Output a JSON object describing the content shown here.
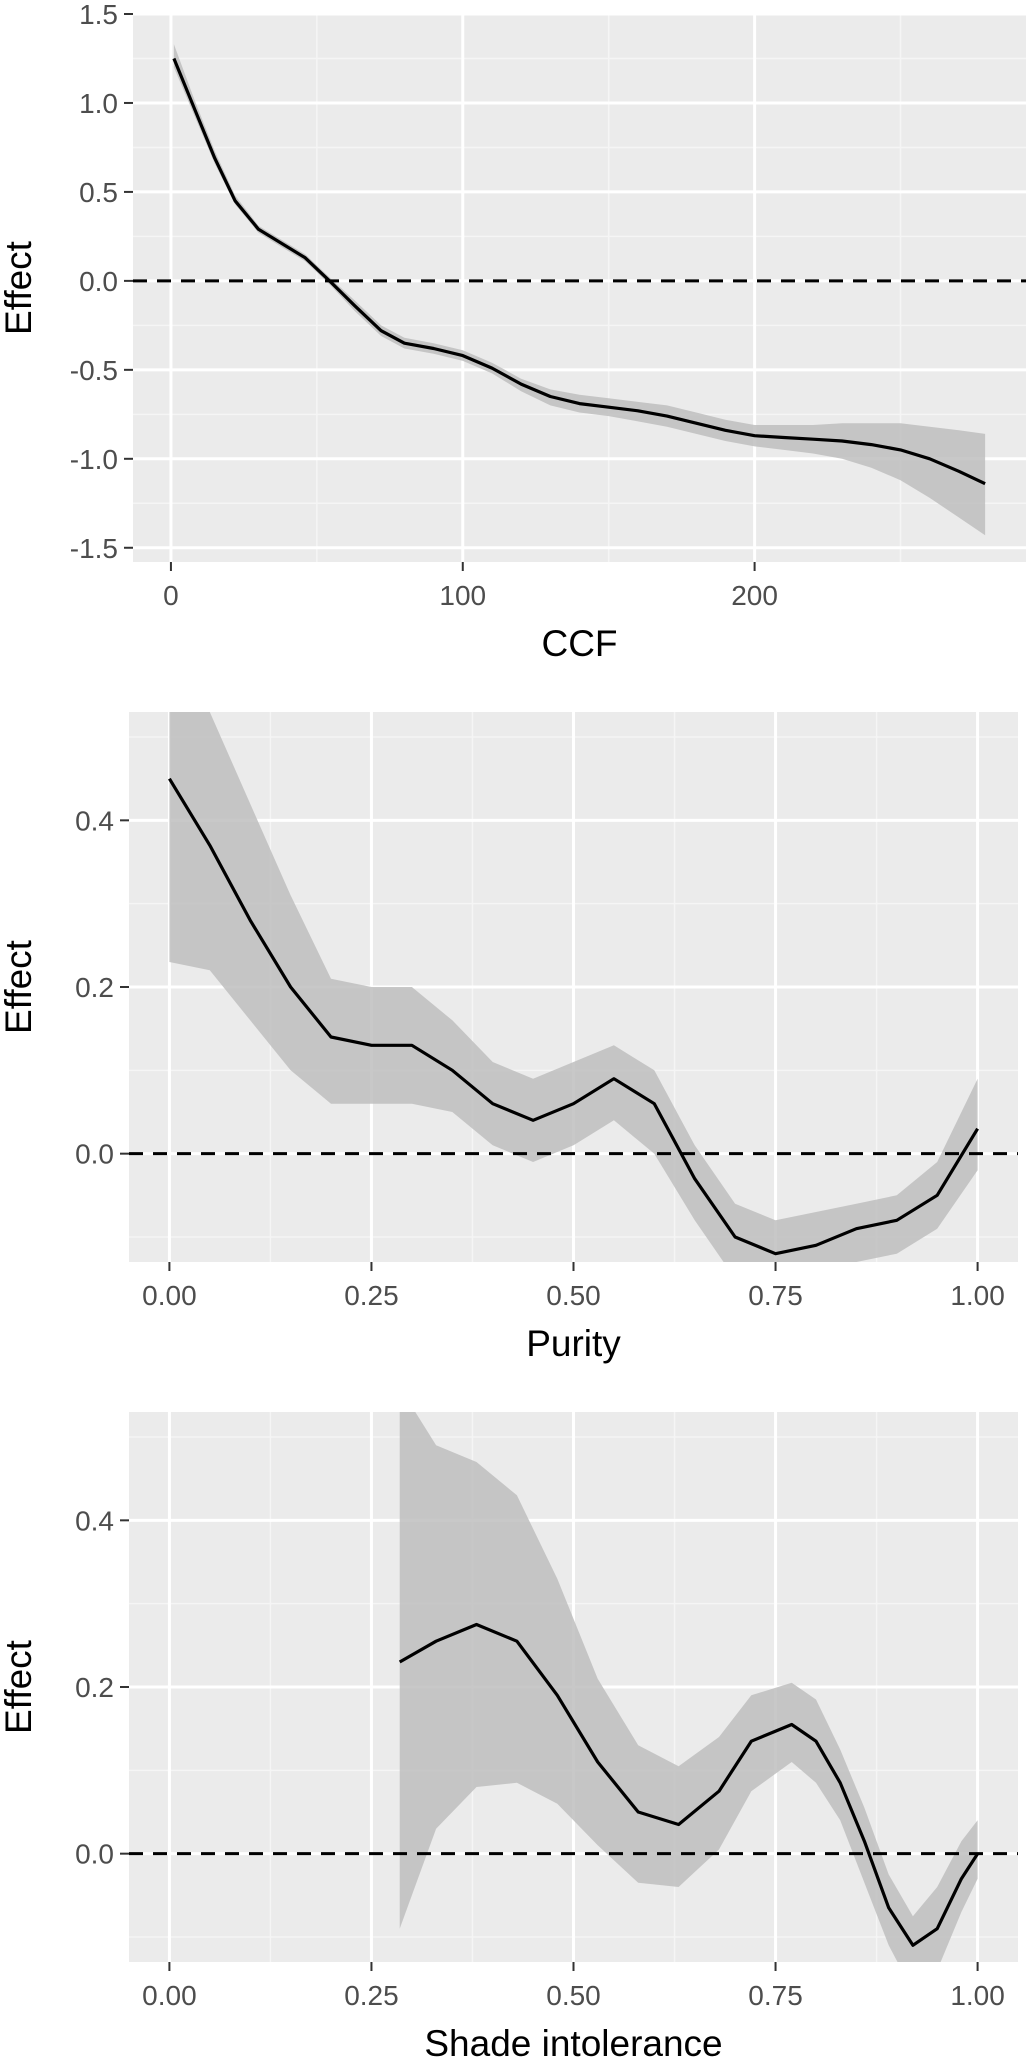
{
  "colors": {
    "panel_background": "#EBEBEB",
    "grid_major": "#FFFFFF",
    "grid_minor": "#F5F5F5",
    "ribbon": "#BEBEBE",
    "line": "#000000",
    "reference_line": "#000000",
    "tick_text": "#4D4D4D"
  },
  "chart_data": [
    {
      "type": "line",
      "xlabel": "CCF",
      "ylabel": "Effect",
      "xlim": [
        -13,
        293
      ],
      "ylim": [
        -1.58,
        1.5
      ],
      "x_ticks": [
        0,
        100,
        200
      ],
      "x_tick_labels": [
        "0",
        "100",
        "200"
      ],
      "y_ticks": [
        -1.5,
        -1.0,
        -0.5,
        0.0,
        0.5,
        1.0,
        1.5
      ],
      "y_tick_labels": [
        "-1.5",
        "-1.0",
        "-0.5",
        "0.0",
        "0.5",
        "1.0",
        "1.5"
      ],
      "reference_line": {
        "y": 0,
        "style": "dashed"
      },
      "grid": true,
      "series": [
        {
          "x": [
            1,
            8,
            15,
            22,
            30,
            38,
            46,
            55,
            63,
            72,
            80,
            90,
            100,
            110,
            120,
            130,
            140,
            150,
            160,
            170,
            180,
            190,
            200,
            210,
            220,
            230,
            240,
            250,
            260,
            270,
            279
          ],
          "y": [
            1.25,
            0.97,
            0.69,
            0.45,
            0.29,
            0.21,
            0.13,
            -0.01,
            -0.14,
            -0.28,
            -0.35,
            -0.38,
            -0.42,
            -0.49,
            -0.58,
            -0.65,
            -0.69,
            -0.71,
            -0.73,
            -0.76,
            -0.8,
            -0.84,
            -0.87,
            -0.88,
            -0.89,
            -0.9,
            -0.92,
            -0.95,
            -1.0,
            -1.07,
            -1.14
          ],
          "lower": [
            1.2,
            0.93,
            0.66,
            0.43,
            0.27,
            0.19,
            0.11,
            -0.03,
            -0.17,
            -0.31,
            -0.38,
            -0.41,
            -0.45,
            -0.52,
            -0.62,
            -0.7,
            -0.74,
            -0.76,
            -0.79,
            -0.82,
            -0.86,
            -0.9,
            -0.93,
            -0.95,
            -0.97,
            -1.0,
            -1.05,
            -1.12,
            -1.22,
            -1.33,
            -1.43
          ],
          "upper": [
            1.33,
            1.02,
            0.73,
            0.48,
            0.31,
            0.23,
            0.15,
            0.01,
            -0.11,
            -0.25,
            -0.32,
            -0.35,
            -0.39,
            -0.46,
            -0.55,
            -0.61,
            -0.64,
            -0.66,
            -0.68,
            -0.7,
            -0.74,
            -0.78,
            -0.81,
            -0.81,
            -0.81,
            -0.8,
            -0.8,
            -0.8,
            -0.82,
            -0.84,
            -0.86
          ]
        }
      ]
    },
    {
      "type": "line",
      "xlabel": "Purity",
      "ylabel": "Effect",
      "xlim": [
        -0.05,
        1.05
      ],
      "ylim": [
        -0.13,
        0.53
      ],
      "x_ticks": [
        0.0,
        0.25,
        0.5,
        0.75,
        1.0
      ],
      "x_tick_labels": [
        "0.00",
        "0.25",
        "0.50",
        "0.75",
        "1.00"
      ],
      "y_ticks": [
        0.0,
        0.2,
        0.4
      ],
      "y_tick_labels": [
        "0.0",
        "0.2",
        "0.4"
      ],
      "reference_line": {
        "y": 0,
        "style": "dashed"
      },
      "grid": true,
      "series": [
        {
          "x": [
            0.0,
            0.05,
            0.1,
            0.15,
            0.2,
            0.25,
            0.3,
            0.35,
            0.4,
            0.45,
            0.5,
            0.55,
            0.6,
            0.65,
            0.7,
            0.75,
            0.8,
            0.85,
            0.9,
            0.95,
            1.0
          ],
          "y": [
            0.45,
            0.37,
            0.28,
            0.2,
            0.14,
            0.13,
            0.13,
            0.1,
            0.06,
            0.04,
            0.06,
            0.09,
            0.06,
            -0.03,
            -0.1,
            -0.12,
            -0.11,
            -0.09,
            -0.08,
            -0.05,
            0.03
          ],
          "lower": [
            0.23,
            0.22,
            0.16,
            0.1,
            0.06,
            0.06,
            0.06,
            0.05,
            0.01,
            -0.01,
            0.01,
            0.04,
            0.0,
            -0.08,
            -0.15,
            -0.17,
            -0.16,
            -0.13,
            -0.12,
            -0.09,
            -0.02
          ],
          "upper": [
            0.6,
            0.53,
            0.42,
            0.31,
            0.21,
            0.2,
            0.2,
            0.16,
            0.11,
            0.09,
            0.11,
            0.13,
            0.1,
            0.01,
            -0.06,
            -0.08,
            -0.07,
            -0.06,
            -0.05,
            -0.01,
            0.09
          ]
        }
      ]
    },
    {
      "type": "line",
      "xlabel": "Shade intolerance",
      "ylabel": "Effect",
      "xlim": [
        -0.05,
        1.05
      ],
      "ylim": [
        -0.13,
        0.53
      ],
      "x_ticks": [
        0.0,
        0.25,
        0.5,
        0.75,
        1.0
      ],
      "x_tick_labels": [
        "0.00",
        "0.25",
        "0.50",
        "0.75",
        "1.00"
      ],
      "y_ticks": [
        0.0,
        0.2,
        0.4
      ],
      "y_tick_labels": [
        "0.0",
        "0.2",
        "0.4"
      ],
      "reference_line": {
        "y": 0,
        "style": "dashed"
      },
      "grid": true,
      "series": [
        {
          "x": [
            0.285,
            0.33,
            0.38,
            0.43,
            0.48,
            0.53,
            0.58,
            0.63,
            0.68,
            0.72,
            0.77,
            0.8,
            0.83,
            0.86,
            0.89,
            0.92,
            0.95,
            0.98,
            1.0
          ],
          "y": [
            0.23,
            0.255,
            0.275,
            0.255,
            0.19,
            0.11,
            0.05,
            0.035,
            0.075,
            0.135,
            0.155,
            0.135,
            0.085,
            0.015,
            -0.065,
            -0.11,
            -0.09,
            -0.03,
            0.0
          ],
          "lower": [
            -0.09,
            0.03,
            0.08,
            0.085,
            0.06,
            0.01,
            -0.035,
            -0.04,
            0.005,
            0.075,
            0.11,
            0.085,
            0.04,
            -0.035,
            -0.11,
            -0.165,
            -0.14,
            -0.07,
            -0.03
          ],
          "upper": [
            0.56,
            0.49,
            0.47,
            0.43,
            0.33,
            0.21,
            0.13,
            0.105,
            0.14,
            0.19,
            0.205,
            0.185,
            0.125,
            0.055,
            -0.025,
            -0.075,
            -0.04,
            0.015,
            0.04
          ]
        }
      ]
    }
  ]
}
